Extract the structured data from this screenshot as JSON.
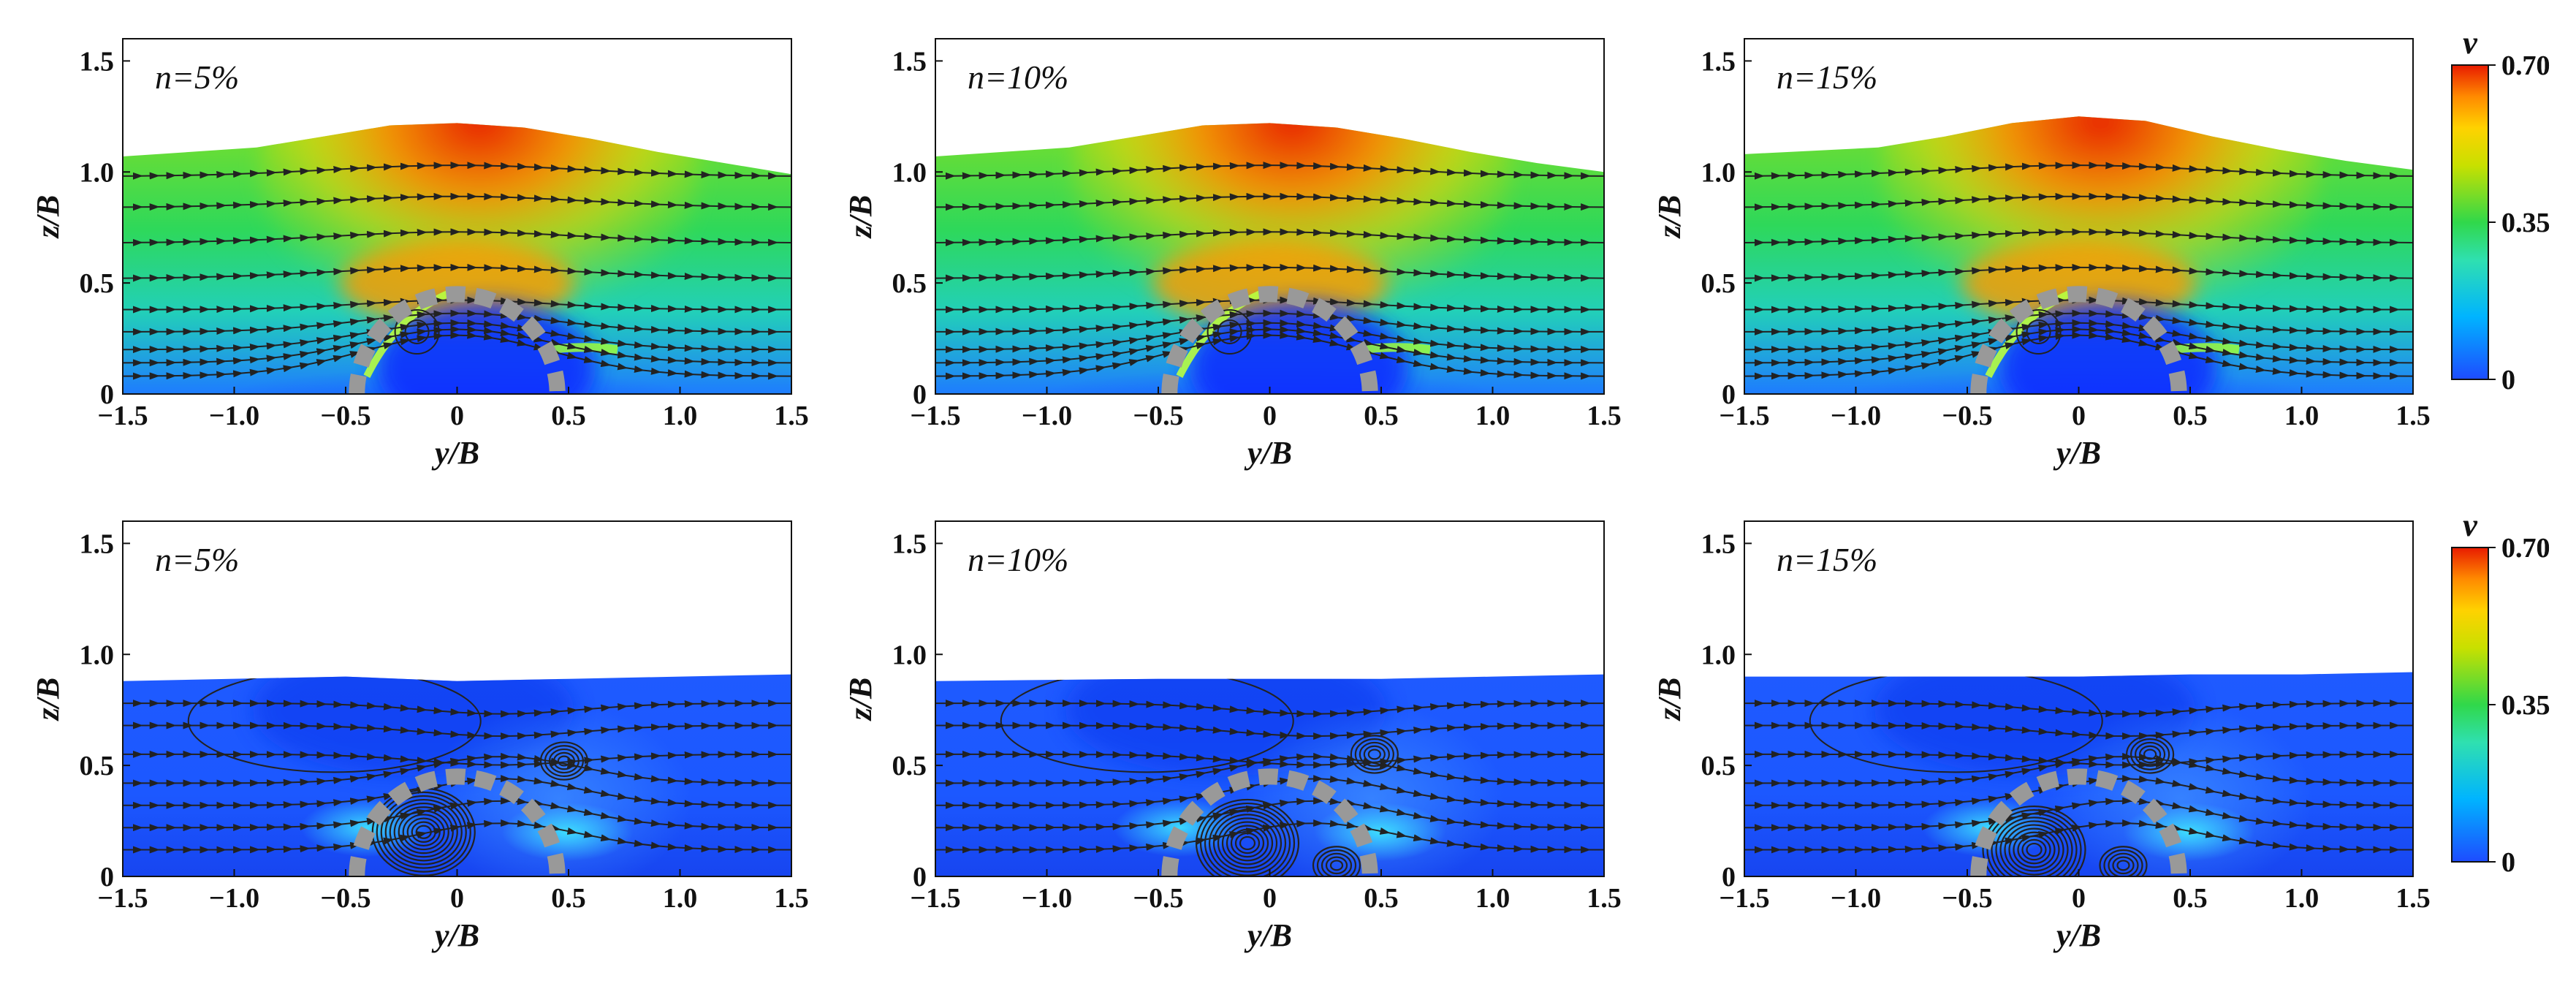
{
  "chart_data": [
    {
      "type": "heatmap",
      "row": "upper",
      "annotation": "n=5%",
      "xlabel": "y/B",
      "ylabel": "z/B",
      "xlim": [
        -1.5,
        1.5
      ],
      "ylim": [
        0,
        1.6
      ],
      "xticks": [
        "−1.5",
        "−1.0",
        "−0.5",
        "0",
        "0.5",
        "1.0",
        "1.5"
      ],
      "yticks": [
        "0",
        "0.5",
        "1.0",
        "1.5"
      ],
      "surface": {
        "y": [
          -1.5,
          -0.9,
          -0.6,
          -0.3,
          0.0,
          0.3,
          0.6,
          0.9,
          1.2,
          1.5
        ],
        "z": [
          1.07,
          1.11,
          1.16,
          1.21,
          1.22,
          1.2,
          1.15,
          1.09,
          1.04,
          0.99
        ]
      },
      "obstacle": {
        "y_center": 0,
        "radius": 0.45
      },
      "colorbar": {
        "label": "v",
        "min": 0,
        "max": 0.7,
        "ticks": [
          "0",
          "0.35",
          "0.70"
        ]
      }
    },
    {
      "type": "heatmap",
      "row": "upper",
      "annotation": "n=10%",
      "xlabel": "y/B",
      "ylabel": "z/B",
      "xlim": [
        -1.5,
        1.5
      ],
      "ylim": [
        0,
        1.6
      ],
      "xticks": [
        "−1.5",
        "−1.0",
        "−0.5",
        "0",
        "0.5",
        "1.0",
        "1.5"
      ],
      "yticks": [
        "0",
        "0.5",
        "1.0",
        "1.5"
      ],
      "surface": {
        "y": [
          -1.5,
          -0.9,
          -0.6,
          -0.3,
          0.0,
          0.3,
          0.6,
          0.9,
          1.2,
          1.5
        ],
        "z": [
          1.07,
          1.11,
          1.16,
          1.21,
          1.22,
          1.2,
          1.15,
          1.09,
          1.04,
          1.0
        ]
      },
      "obstacle": {
        "y_center": 0,
        "radius": 0.45
      }
    },
    {
      "type": "heatmap",
      "row": "upper",
      "annotation": "n=15%",
      "xlabel": "y/B",
      "ylabel": "z/B",
      "xlim": [
        -1.5,
        1.5
      ],
      "ylim": [
        0,
        1.6
      ],
      "xticks": [
        "−1.5",
        "−1.0",
        "−0.5",
        "0",
        "0.5",
        "1.0",
        "1.5"
      ],
      "yticks": [
        "0",
        "0.5",
        "1.0",
        "1.5"
      ],
      "surface": {
        "y": [
          -1.5,
          -0.9,
          -0.6,
          -0.3,
          0.0,
          0.3,
          0.6,
          0.9,
          1.2,
          1.5
        ],
        "z": [
          1.08,
          1.11,
          1.16,
          1.22,
          1.25,
          1.23,
          1.16,
          1.1,
          1.05,
          1.01
        ]
      },
      "obstacle": {
        "y_center": 0,
        "radius": 0.45
      },
      "colorbar": {
        "label": "v",
        "min": 0,
        "max": 0.7,
        "ticks": [
          "0",
          "0.35",
          "0.70"
        ]
      }
    },
    {
      "type": "heatmap",
      "row": "lower",
      "annotation": "n=5%",
      "xlabel": "y/B",
      "ylabel": "z/B",
      "xlim": [
        -1.5,
        1.5
      ],
      "ylim": [
        0,
        1.6
      ],
      "xticks": [
        "−1.5",
        "−1.0",
        "−0.5",
        "0",
        "0.5",
        "1.0",
        "1.5"
      ],
      "yticks": [
        "0",
        "0.5",
        "1.0",
        "1.5"
      ],
      "surface": {
        "y": [
          -1.5,
          -0.5,
          0.0,
          0.5,
          1.0,
          1.5
        ],
        "z": [
          0.88,
          0.9,
          0.88,
          0.89,
          0.9,
          0.91
        ]
      },
      "obstacle": {
        "y_center": 0,
        "radius": 0.45
      },
      "vortices": [
        {
          "y": -0.15,
          "z": 0.2
        },
        {
          "y": 0.48,
          "z": 0.52
        }
      ],
      "colorbar": {
        "label": "v",
        "min": 0,
        "max": 0.7,
        "ticks": [
          "0",
          "0.35",
          "0.70"
        ]
      }
    },
    {
      "type": "heatmap",
      "row": "lower",
      "annotation": "n=10%",
      "xlabel": "y/B",
      "ylabel": "z/B",
      "xlim": [
        -1.5,
        1.5
      ],
      "ylim": [
        0,
        1.6
      ],
      "xticks": [
        "−1.5",
        "−1.0",
        "−0.5",
        "0",
        "0.5",
        "1.0",
        "1.5"
      ],
      "yticks": [
        "0",
        "0.5",
        "1.0",
        "1.5"
      ],
      "surface": {
        "y": [
          -1.5,
          -0.5,
          0.0,
          0.5,
          1.0,
          1.5
        ],
        "z": [
          0.88,
          0.89,
          0.89,
          0.89,
          0.9,
          0.91
        ]
      },
      "obstacle": {
        "y_center": 0,
        "radius": 0.45
      },
      "vortices": [
        {
          "y": -0.1,
          "z": 0.15
        },
        {
          "y": 0.3,
          "z": 0.05
        },
        {
          "y": 0.47,
          "z": 0.55
        }
      ]
    },
    {
      "type": "heatmap",
      "row": "lower",
      "annotation": "n=15%",
      "xlabel": "y/B",
      "ylabel": "z/B",
      "xlim": [
        -1.5,
        1.5
      ],
      "ylim": [
        0,
        1.6
      ],
      "xticks": [
        "−1.5",
        "−1.0",
        "−0.5",
        "0",
        "0.5",
        "1.0",
        "1.5"
      ],
      "yticks": [
        "0",
        "0.5",
        "1.0",
        "1.5"
      ],
      "surface": {
        "y": [
          -1.5,
          -0.5,
          0.0,
          0.5,
          1.0,
          1.5
        ],
        "z": [
          0.9,
          0.9,
          0.9,
          0.91,
          0.91,
          0.92
        ]
      },
      "obstacle": {
        "y_center": 0,
        "radius": 0.45
      },
      "vortices": [
        {
          "y": -0.2,
          "z": 0.12
        },
        {
          "y": 0.2,
          "z": 0.05
        },
        {
          "y": 0.32,
          "z": 0.55
        }
      ],
      "colorbar": {
        "label": "v",
        "min": 0,
        "max": 0.7,
        "ticks": [
          "0",
          "0.35",
          "0.70"
        ]
      }
    }
  ]
}
